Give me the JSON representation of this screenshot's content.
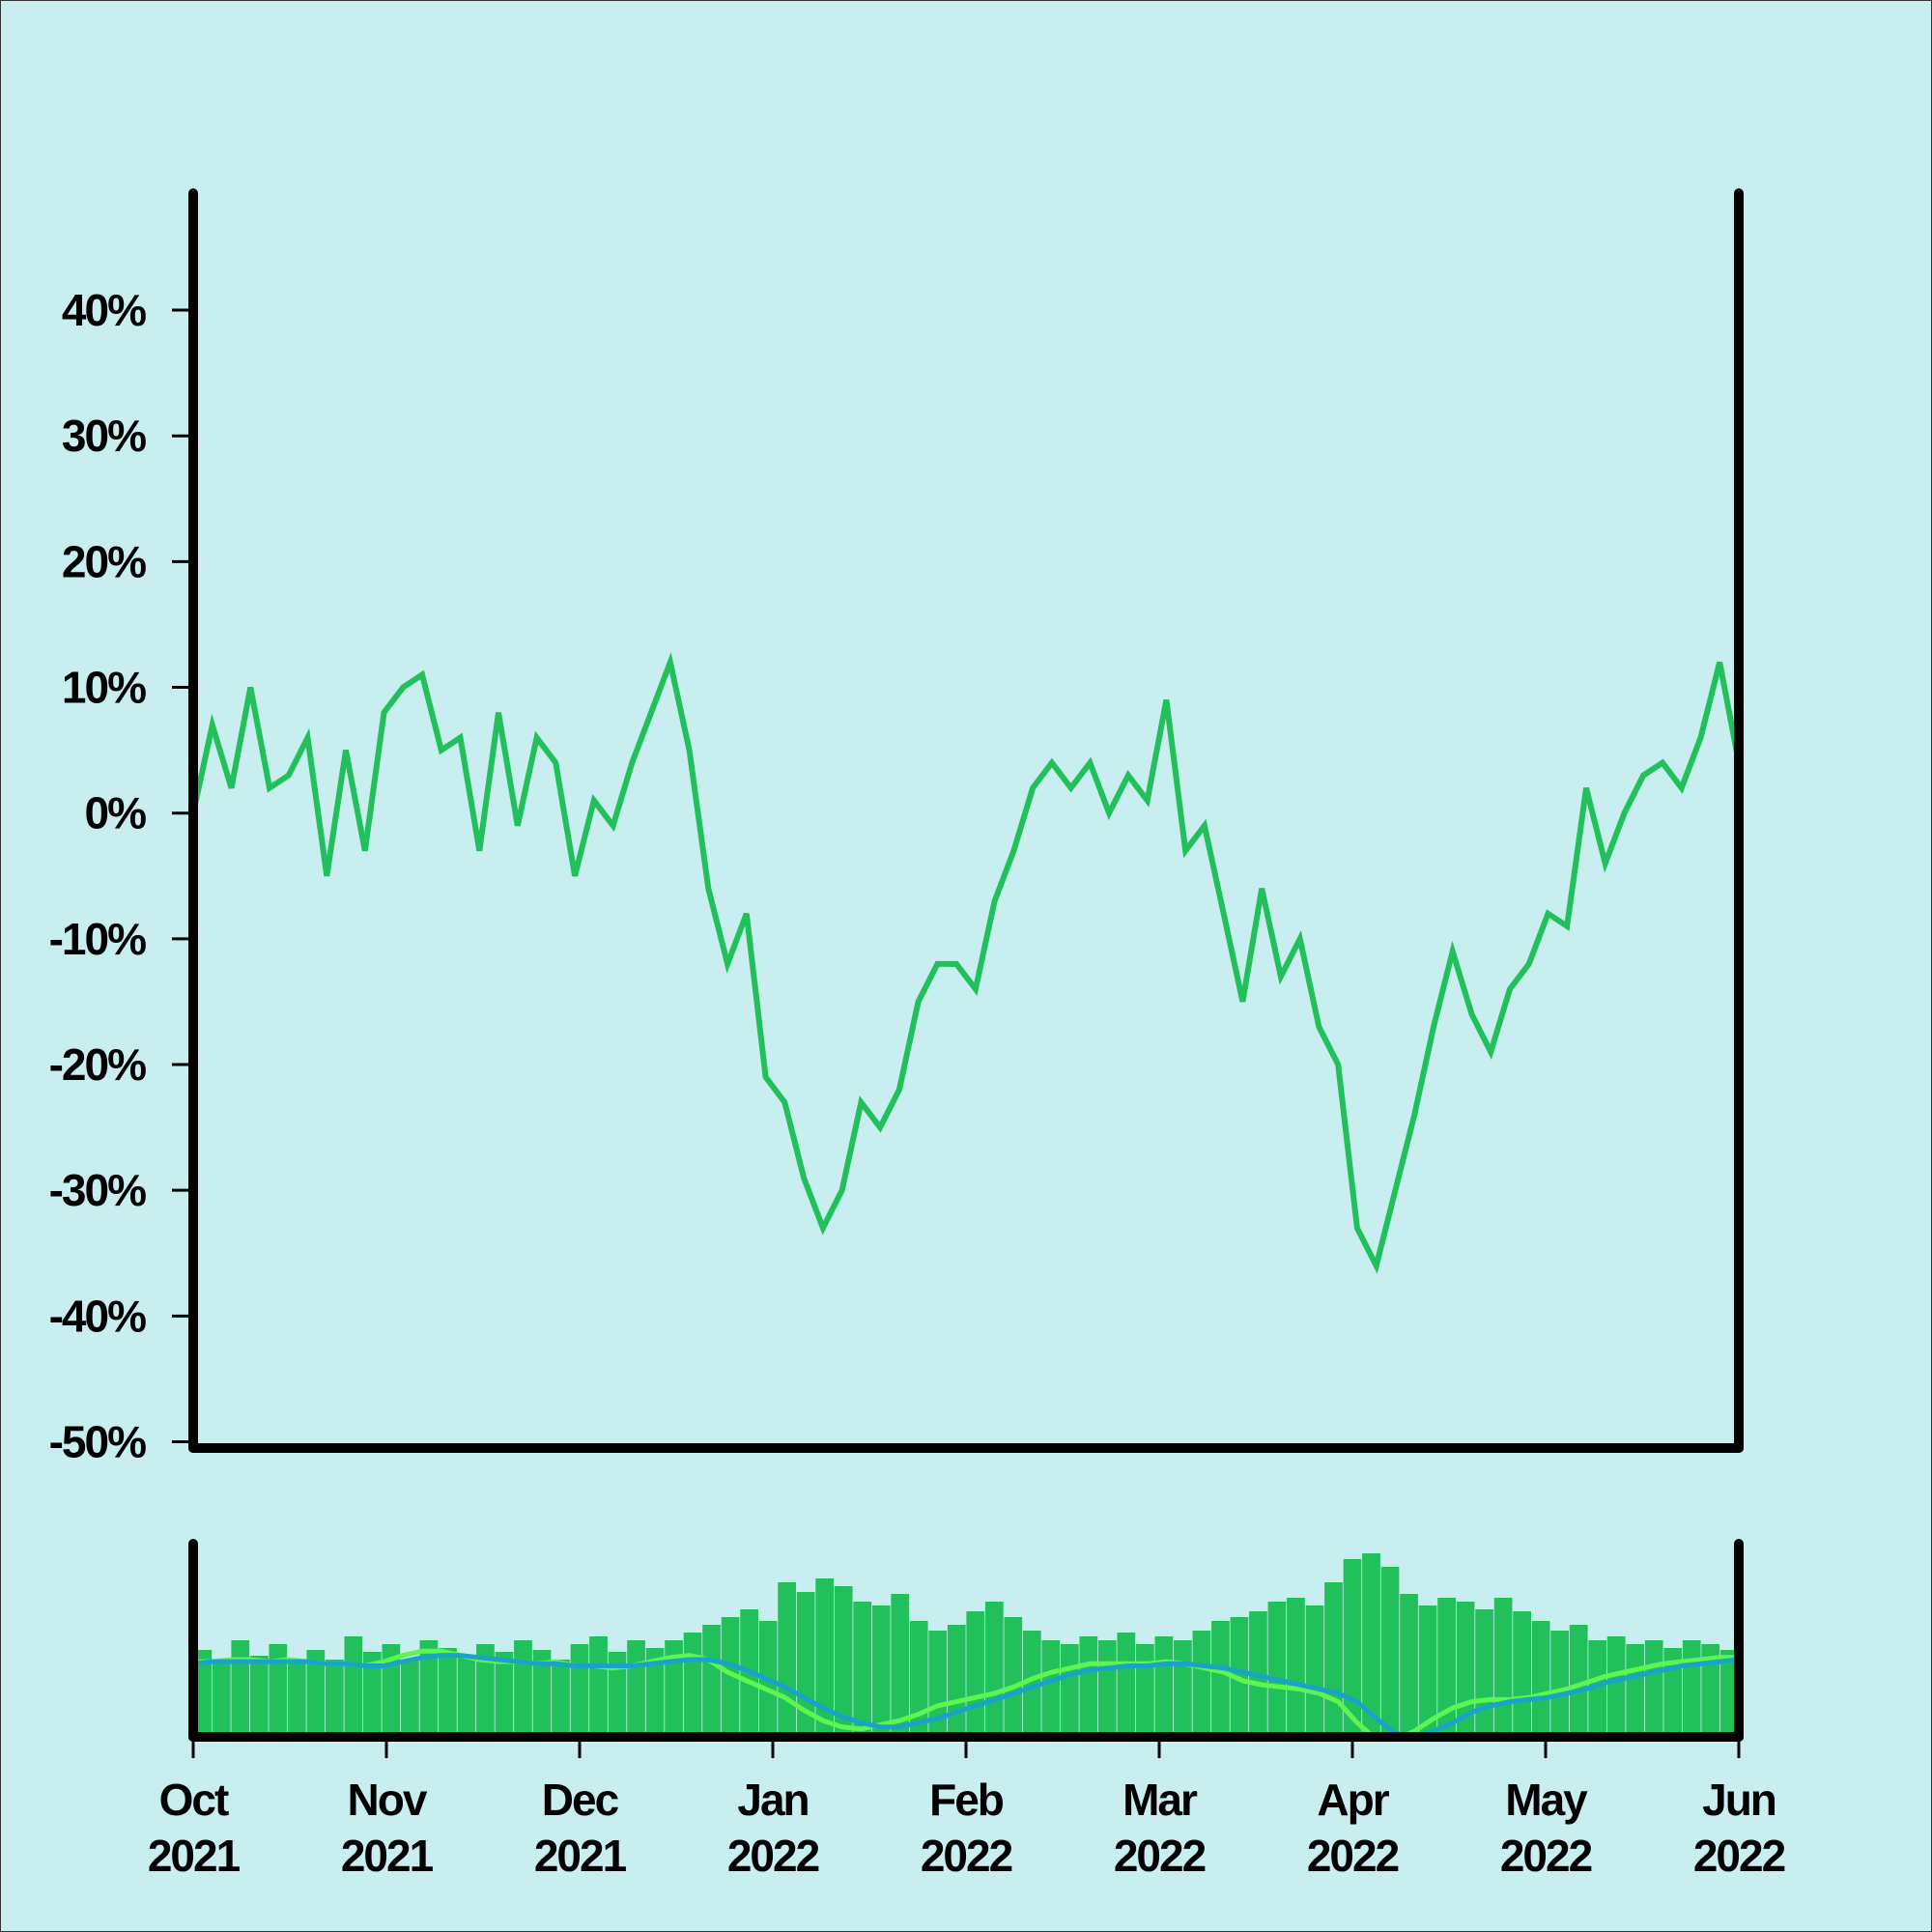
{
  "chart_data": [
    {
      "type": "line",
      "xlim": [
        0,
        8
      ],
      "ylim": [
        -50.5,
        49.3
      ],
      "yticks": [
        {
          "value": -50,
          "label": "-50%"
        },
        {
          "value": -40,
          "label": "-40%"
        },
        {
          "value": -30,
          "label": "-30%"
        },
        {
          "value": -20,
          "label": "-20%"
        },
        {
          "value": -10,
          "label": "-10%"
        },
        {
          "value": 0,
          "label": "0%"
        },
        {
          "value": 10,
          "label": "10%"
        },
        {
          "value": 20,
          "label": "20%"
        },
        {
          "value": 30,
          "label": "30%"
        },
        {
          "value": 40,
          "label": "40%"
        }
      ],
      "series": [
        {
          "color": "#22c05a",
          "values": [
            0,
            7,
            2,
            10,
            2,
            3,
            6,
            -5,
            5,
            -3,
            8,
            10,
            11,
            5,
            6,
            -3,
            8,
            -1,
            6,
            4,
            -5,
            1,
            -1,
            4,
            8,
            12,
            5,
            -6,
            -12,
            -8,
            -21,
            -23,
            -29,
            -33,
            -30,
            -23,
            -25,
            -22,
            -15,
            -12,
            -12,
            -14,
            -7,
            -3,
            2,
            4,
            2,
            4,
            0,
            3,
            1,
            9,
            -3,
            -1,
            -8,
            -15,
            -6,
            -13,
            -10,
            -17,
            -20,
            -33,
            -36,
            -30,
            -24,
            -17,
            -11,
            -16,
            -19,
            -14,
            -12,
            -8,
            -9,
            2,
            -4,
            0,
            3,
            4,
            2,
            6,
            12,
            4
          ]
        }
      ]
    },
    {
      "type": "bar",
      "xlim": [
        0,
        8
      ],
      "xticks": [
        {
          "value": 0,
          "label": "Oct 2021"
        },
        {
          "value": 1,
          "label": "Nov 2021"
        },
        {
          "value": 2,
          "label": "Dec 2021"
        },
        {
          "value": 3,
          "label": "Jan 2022"
        },
        {
          "value": 4,
          "label": "Feb 2022"
        },
        {
          "value": 5,
          "label": "Mar 2022"
        },
        {
          "value": 6,
          "label": "Apr 2022"
        },
        {
          "value": 7,
          "label": "May 2022"
        },
        {
          "value": 8,
          "label": "Jun 2022"
        }
      ],
      "ylim": [
        0,
        100
      ],
      "y2lim": [
        -32.7,
        59
      ],
      "series": [
        {
          "color": "#22c05a",
          "values": [
            45,
            40,
            50,
            42,
            48,
            38,
            45,
            40,
            52,
            44,
            48,
            40,
            50,
            46,
            42,
            48,
            44,
            50,
            45,
            40,
            48,
            52,
            44,
            50,
            46,
            50,
            54,
            58,
            62,
            66,
            60,
            80,
            75,
            82,
            78,
            70,
            68,
            74,
            60,
            55,
            58,
            65,
            70,
            62,
            55,
            50,
            48,
            52,
            50,
            54,
            48,
            52,
            50,
            55,
            60,
            62,
            65,
            70,
            72,
            68,
            80,
            92,
            95,
            88,
            74,
            68,
            72,
            70,
            66,
            72,
            65,
            60,
            55,
            58,
            50,
            52,
            48,
            50,
            46,
            50,
            48,
            45
          ]
        },
        {
          "type": "line",
          "axis": "y2",
          "color": "#5ef550",
          "values": [
            3,
            3,
            4,
            4,
            3,
            4,
            3,
            2,
            2,
            1,
            3,
            6,
            8,
            8,
            6,
            4,
            3,
            3,
            2,
            3,
            1,
            1,
            0,
            1,
            3,
            5,
            6,
            4,
            -2,
            -6,
            -10,
            -14,
            -20,
            -25,
            -28,
            -29,
            -27,
            -25,
            -22,
            -18,
            -16,
            -14,
            -12,
            -9,
            -5,
            -2,
            0,
            2,
            2,
            2,
            2,
            3,
            2,
            0,
            -2,
            -6,
            -8,
            -9,
            -10,
            -12,
            -16,
            -26,
            -34,
            -34,
            -30,
            -24,
            -19,
            -16,
            -15,
            -15,
            -14,
            -12,
            -10,
            -7,
            -4,
            -2,
            0,
            2,
            3,
            4,
            5,
            5
          ]
        },
        {
          "type": "line",
          "axis": "y2",
          "color": "#1aa3c8",
          "values": [
            2,
            3,
            3,
            3,
            3,
            3,
            3,
            2,
            2,
            1,
            1,
            3,
            5,
            6,
            6,
            5,
            4,
            3,
            2,
            2,
            1,
            1,
            1,
            1,
            2,
            3,
            4,
            4,
            2,
            -1,
            -5,
            -9,
            -14,
            -19,
            -23,
            -26,
            -28,
            -28,
            -26,
            -24,
            -21,
            -18,
            -15,
            -12,
            -9,
            -6,
            -3,
            -1,
            0,
            1,
            1,
            2,
            2,
            1,
            0,
            -2,
            -4,
            -6,
            -8,
            -10,
            -12,
            -16,
            -24,
            -31,
            -33,
            -30,
            -26,
            -21,
            -18,
            -16,
            -15,
            -14,
            -12,
            -10,
            -7,
            -5,
            -3,
            -1,
            1,
            2,
            3,
            4
          ]
        }
      ]
    }
  ]
}
